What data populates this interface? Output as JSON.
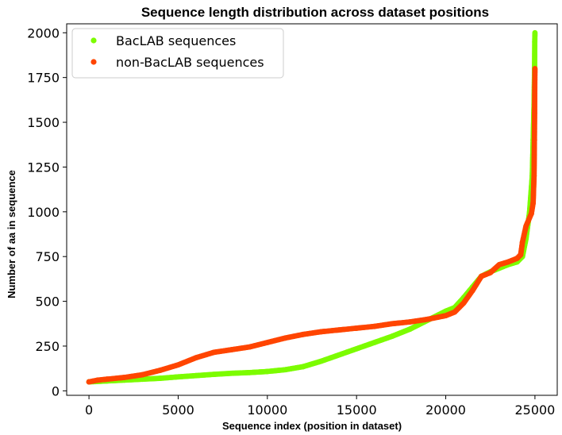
{
  "chart_data": {
    "type": "scatter",
    "title": "Sequence length distribution across dataset positions",
    "xlabel": "Sequence index (position in dataset)",
    "ylabel": "Number of aa in sequence",
    "xlim": [
      -1250,
      26250
    ],
    "ylim": [
      -25,
      2050
    ],
    "x_ticks": [
      0,
      5000,
      10000,
      15000,
      20000,
      25000
    ],
    "y_ticks": [
      0,
      250,
      500,
      750,
      1000,
      1250,
      1500,
      1750,
      2000
    ],
    "grid": false,
    "legend_position": "upper-left",
    "series": [
      {
        "name": "BacLAB sequences",
        "color": "#7cfc00",
        "points": [
          [
            0,
            50
          ],
          [
            1000,
            55
          ],
          [
            2000,
            60
          ],
          [
            3000,
            65
          ],
          [
            4000,
            70
          ],
          [
            5000,
            78
          ],
          [
            6000,
            85
          ],
          [
            7000,
            92
          ],
          [
            8000,
            98
          ],
          [
            9000,
            102
          ],
          [
            10000,
            108
          ],
          [
            11000,
            118
          ],
          [
            12000,
            135
          ],
          [
            13000,
            165
          ],
          [
            14000,
            200
          ],
          [
            15000,
            235
          ],
          [
            16000,
            270
          ],
          [
            17000,
            305
          ],
          [
            18000,
            345
          ],
          [
            19000,
            395
          ],
          [
            20000,
            445
          ],
          [
            20500,
            465
          ],
          [
            21000,
            520
          ],
          [
            21500,
            580
          ],
          [
            22000,
            640
          ],
          [
            22500,
            665
          ],
          [
            23000,
            685
          ],
          [
            23500,
            705
          ],
          [
            24000,
            720
          ],
          [
            24300,
            750
          ],
          [
            24500,
            850
          ],
          [
            24700,
            1000
          ],
          [
            24850,
            1200
          ],
          [
            24900,
            1400
          ],
          [
            24950,
            1600
          ],
          [
            24980,
            1800
          ],
          [
            24990,
            1950
          ],
          [
            25000,
            2000
          ]
        ]
      },
      {
        "name": "non-BacLAB sequences",
        "color": "#ff4500",
        "points": [
          [
            0,
            50
          ],
          [
            500,
            60
          ],
          [
            1000,
            65
          ],
          [
            2000,
            75
          ],
          [
            3000,
            90
          ],
          [
            4000,
            115
          ],
          [
            5000,
            145
          ],
          [
            6000,
            185
          ],
          [
            7000,
            215
          ],
          [
            8000,
            230
          ],
          [
            9000,
            245
          ],
          [
            10000,
            270
          ],
          [
            11000,
            295
          ],
          [
            12000,
            315
          ],
          [
            13000,
            330
          ],
          [
            14000,
            340
          ],
          [
            15000,
            350
          ],
          [
            16000,
            360
          ],
          [
            17000,
            375
          ],
          [
            18000,
            385
          ],
          [
            19000,
            400
          ],
          [
            20000,
            420
          ],
          [
            20500,
            440
          ],
          [
            21000,
            490
          ],
          [
            21500,
            560
          ],
          [
            22000,
            640
          ],
          [
            22500,
            660
          ],
          [
            23000,
            705
          ],
          [
            23500,
            720
          ],
          [
            24000,
            740
          ],
          [
            24200,
            760
          ],
          [
            24300,
            830
          ],
          [
            24500,
            920
          ],
          [
            24800,
            990
          ],
          [
            24900,
            1050
          ],
          [
            24950,
            1200
          ],
          [
            24970,
            1400
          ],
          [
            24980,
            1550
          ],
          [
            24990,
            1700
          ],
          [
            25000,
            1800
          ]
        ]
      }
    ]
  }
}
